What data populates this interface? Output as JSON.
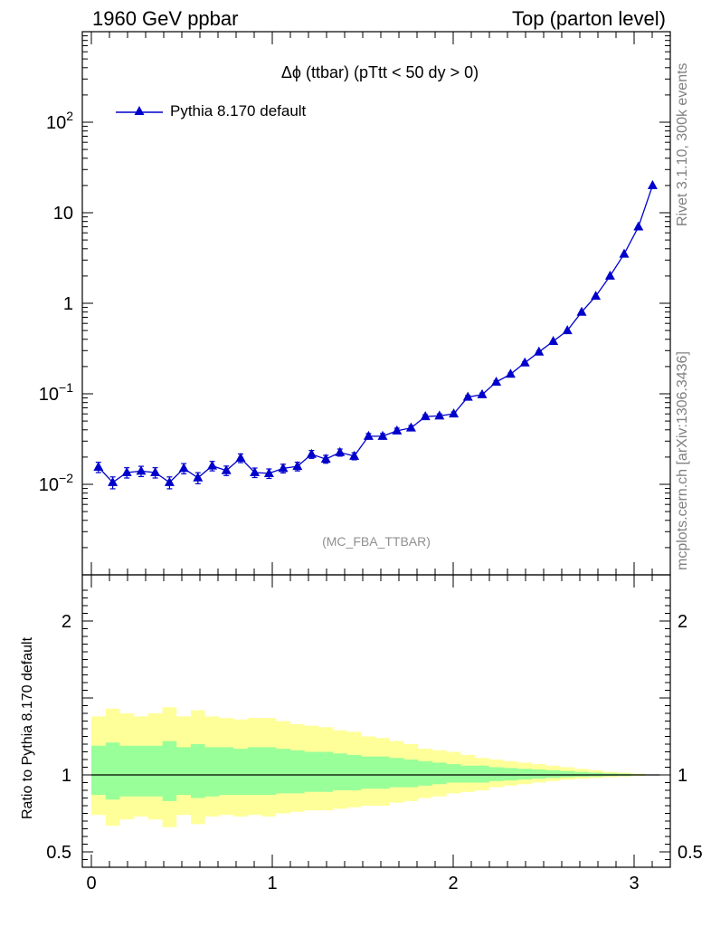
{
  "header": {
    "left": "1960 GeV ppbar",
    "right": "Top (parton level)"
  },
  "side": {
    "top": "Rivet 3.1.10,  300k events",
    "bottom": "mcplots.cern.ch [arXiv:1306.3436]"
  },
  "plot_title": "Δϕ (ttbar) (pTtt < 50 dy > 0)",
  "analysis": "(MC_FBA_TTBAR)",
  "legend": {
    "label": "Pythia 8.170 default"
  },
  "ratio_ylabel": "Ratio to Pythia 8.170 default",
  "colors": {
    "series": "#0000cc",
    "band_outer": "#ffff99",
    "band_inner": "#99ff99"
  },
  "chart_data": [
    {
      "type": "line",
      "yscale": "log",
      "ylim": [
        0.001,
        1000
      ],
      "xlim": [
        -0.05,
        3.2
      ],
      "ytick_labels": [
        "10^-2",
        "10^-1",
        "1",
        "10",
        "10^2"
      ],
      "series": [
        {
          "name": "Pythia 8.170 default",
          "marker": "triangle-up",
          "x": [
            0.039,
            0.118,
            0.196,
            0.275,
            0.353,
            0.432,
            0.511,
            0.589,
            0.668,
            0.746,
            0.825,
            0.903,
            0.982,
            1.06,
            1.139,
            1.217,
            1.296,
            1.374,
            1.453,
            1.532,
            1.61,
            1.689,
            1.767,
            1.846,
            1.924,
            2.003,
            2.081,
            2.16,
            2.238,
            2.317,
            2.396,
            2.474,
            2.553,
            2.631,
            2.71,
            2.788,
            2.867,
            2.945,
            3.024,
            3.102
          ],
          "y": [
            0.0155,
            0.0105,
            0.0135,
            0.014,
            0.0135,
            0.0105,
            0.015,
            0.0118,
            0.016,
            0.0142,
            0.0195,
            0.0135,
            0.0132,
            0.015,
            0.0158,
            0.0215,
            0.019,
            0.0225,
            0.0205,
            0.034,
            0.034,
            0.039,
            0.042,
            0.056,
            0.057,
            0.06,
            0.092,
            0.098,
            0.135,
            0.165,
            0.22,
            0.29,
            0.38,
            0.5,
            0.8,
            1.2,
            2.0,
            3.5,
            7.0,
            20.0
          ],
          "yerr_rel": [
            0.13,
            0.15,
            0.13,
            0.13,
            0.13,
            0.15,
            0.13,
            0.14,
            0.12,
            0.12,
            0.11,
            0.12,
            0.12,
            0.11,
            0.11,
            0.1,
            0.1,
            0.09,
            0.09,
            0.07,
            0.07,
            0.07,
            0.06,
            0.05,
            0.05,
            0.05,
            0.04,
            0.04,
            0.035,
            0.03,
            0.03,
            0.025,
            0.02,
            0.02,
            0.015,
            0.012,
            0.01,
            0.008,
            0.005,
            0.003
          ]
        }
      ]
    },
    {
      "type": "area",
      "ylabel": "Ratio to Pythia 8.170 default",
      "ylim": [
        0.4,
        2.3
      ],
      "xlim": [
        -0.05,
        3.2
      ],
      "xticks": [
        0,
        1,
        2,
        3
      ],
      "yticks": [
        0.5,
        1,
        2
      ],
      "reference_line": 1,
      "bin_edges": [
        0.0,
        0.079,
        0.157,
        0.236,
        0.314,
        0.393,
        0.471,
        0.55,
        0.628,
        0.707,
        0.785,
        0.864,
        0.942,
        1.021,
        1.1,
        1.178,
        1.257,
        1.335,
        1.414,
        1.492,
        1.571,
        1.649,
        1.728,
        1.806,
        1.885,
        1.963,
        2.042,
        2.121,
        2.199,
        2.278,
        2.356,
        2.435,
        2.513,
        2.592,
        2.67,
        2.749,
        2.827,
        2.906,
        2.985,
        3.063,
        3.142
      ],
      "band_outer": {
        "lo": [
          0.74,
          0.67,
          0.71,
          0.73,
          0.71,
          0.66,
          0.74,
          0.68,
          0.73,
          0.74,
          0.73,
          0.74,
          0.73,
          0.75,
          0.76,
          0.77,
          0.77,
          0.78,
          0.79,
          0.8,
          0.8,
          0.82,
          0.83,
          0.85,
          0.86,
          0.88,
          0.89,
          0.9,
          0.92,
          0.93,
          0.94,
          0.95,
          0.96,
          0.97,
          0.975,
          0.98,
          0.985,
          0.99,
          0.994,
          0.998
        ],
        "hi": [
          1.38,
          1.43,
          1.4,
          1.38,
          1.4,
          1.44,
          1.38,
          1.42,
          1.38,
          1.37,
          1.36,
          1.37,
          1.37,
          1.35,
          1.33,
          1.32,
          1.31,
          1.29,
          1.28,
          1.25,
          1.24,
          1.22,
          1.2,
          1.17,
          1.16,
          1.15,
          1.13,
          1.11,
          1.1,
          1.09,
          1.08,
          1.07,
          1.06,
          1.05,
          1.04,
          1.03,
          1.02,
          1.015,
          1.007,
          1.003
        ]
      },
      "band_inner": {
        "lo": [
          0.87,
          0.84,
          0.86,
          0.86,
          0.86,
          0.83,
          0.87,
          0.85,
          0.86,
          0.87,
          0.87,
          0.87,
          0.87,
          0.88,
          0.88,
          0.89,
          0.89,
          0.9,
          0.9,
          0.91,
          0.91,
          0.92,
          0.92,
          0.93,
          0.94,
          0.95,
          0.95,
          0.95,
          0.96,
          0.965,
          0.97,
          0.975,
          0.98,
          0.985,
          0.988,
          0.99,
          0.993,
          0.995,
          0.997,
          0.999
        ],
        "hi": [
          1.19,
          1.21,
          1.19,
          1.19,
          1.19,
          1.22,
          1.18,
          1.2,
          1.18,
          1.18,
          1.17,
          1.18,
          1.18,
          1.17,
          1.16,
          1.15,
          1.15,
          1.14,
          1.13,
          1.12,
          1.12,
          1.11,
          1.1,
          1.09,
          1.08,
          1.07,
          1.06,
          1.06,
          1.05,
          1.045,
          1.04,
          1.035,
          1.03,
          1.025,
          1.02,
          1.015,
          1.01,
          1.007,
          1.004,
          1.001
        ]
      }
    }
  ]
}
